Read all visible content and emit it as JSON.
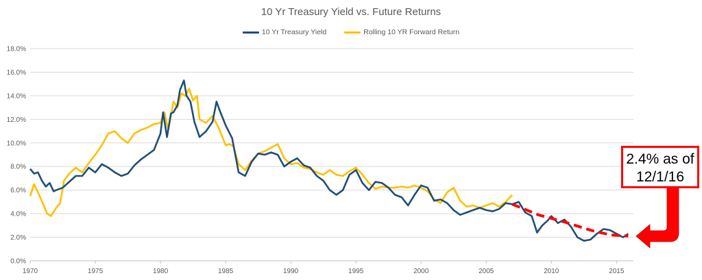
{
  "chart_data": {
    "type": "line",
    "title": "10 Yr Treasury Yield vs. Future Returns",
    "xlabel": "",
    "ylabel": "",
    "xlim": [
      1970,
      2016.3
    ],
    "ylim": [
      0,
      18
    ],
    "x_ticks": [
      1970,
      1975,
      1980,
      1985,
      1990,
      1995,
      2000,
      2005,
      2010,
      2015
    ],
    "y_ticks": [
      "0.0%",
      "2.0%",
      "4.0%",
      "6.0%",
      "8.0%",
      "10.0%",
      "12.0%",
      "14.0%",
      "16.0%",
      "18.0%"
    ],
    "grid": "horizontal",
    "legend_position": "top",
    "series": [
      {
        "name": "10 Yr Treasury Yield",
        "color": "#1f4e79",
        "x": [
          1970,
          1970.3,
          1970.6,
          1970.9,
          1971.2,
          1971.5,
          1971.8,
          1972,
          1972.5,
          1973,
          1973.5,
          1974,
          1974.5,
          1975,
          1975.5,
          1976,
          1976.5,
          1977,
          1977.5,
          1978,
          1978.5,
          1979,
          1979.5,
          1980,
          1980.2,
          1980.5,
          1980.8,
          1981,
          1981.3,
          1981.5,
          1981.8,
          1982,
          1982.3,
          1982.6,
          1983,
          1983.5,
          1984,
          1984.3,
          1984.6,
          1985,
          1985.5,
          1986,
          1986.5,
          1987,
          1987.5,
          1988,
          1988.5,
          1989,
          1989.5,
          1990,
          1990.5,
          1991,
          1991.5,
          1992,
          1992.5,
          1993,
          1993.5,
          1994,
          1994.5,
          1995,
          1995.5,
          1996,
          1996.5,
          1997,
          1997.5,
          1998,
          1998.5,
          1999,
          1999.5,
          2000,
          2000.5,
          2001,
          2001.5,
          2002,
          2002.5,
          2003,
          2003.5,
          2004,
          2004.5,
          2005,
          2005.5,
          2006,
          2006.5,
          2007,
          2007.5,
          2008,
          2008.5,
          2008.9,
          2009.3,
          2009.7,
          2010,
          2010.5,
          2011,
          2011.5,
          2012,
          2012.5,
          2013,
          2013.5,
          2014,
          2014.5,
          2015,
          2015.5,
          2015.9
        ],
        "values": [
          7.8,
          7.4,
          7.5,
          6.8,
          6.3,
          6.6,
          5.9,
          6.0,
          6.2,
          6.7,
          7.2,
          7.2,
          7.9,
          7.5,
          8.2,
          7.9,
          7.5,
          7.2,
          7.4,
          8.1,
          8.6,
          9.0,
          9.4,
          10.8,
          12.6,
          10.5,
          12.5,
          12.6,
          13.2,
          14.5,
          15.3,
          14.0,
          13.5,
          11.8,
          10.5,
          11.0,
          11.8,
          13.5,
          12.6,
          11.5,
          10.4,
          7.5,
          7.2,
          8.4,
          9.1,
          9.0,
          9.2,
          9.0,
          8.0,
          8.4,
          8.7,
          8.1,
          7.9,
          7.2,
          6.8,
          6.0,
          5.6,
          6.0,
          7.3,
          7.7,
          6.6,
          6.0,
          6.7,
          6.6,
          6.2,
          5.6,
          5.4,
          4.7,
          5.6,
          6.4,
          6.2,
          5.1,
          5.2,
          4.9,
          4.3,
          3.9,
          4.1,
          4.3,
          4.5,
          4.3,
          4.2,
          4.4,
          4.9,
          4.8,
          5.0,
          4.1,
          3.8,
          2.4,
          3.0,
          3.4,
          3.8,
          3.2,
          3.5,
          2.9,
          2.0,
          1.7,
          1.8,
          2.3,
          2.7,
          2.6,
          2.3,
          2.0,
          2.3
        ]
      },
      {
        "name": "Rolling 10 YR Forward Return",
        "color": "#ffc000",
        "x": [
          1970,
          1970.3,
          1970.6,
          1971,
          1971.3,
          1971.6,
          1972,
          1972.3,
          1972.6,
          1973,
          1973.5,
          1974,
          1974.5,
          1975,
          1975.5,
          1976,
          1976.5,
          1977,
          1977.5,
          1978,
          1978.5,
          1979,
          1979.5,
          1980,
          1980.3,
          1980.6,
          1981,
          1981.3,
          1981.6,
          1981.9,
          1982.2,
          1982.5,
          1982.8,
          1983,
          1983.5,
          1984,
          1984.5,
          1985,
          1985.3,
          1985.6,
          1986,
          1986.5,
          1987,
          1987.5,
          1988,
          1988.5,
          1989,
          1989.5,
          1990,
          1990.5,
          1991,
          1991.5,
          1992,
          1992.5,
          1993,
          1993.5,
          1994,
          1994.5,
          1995,
          1995.5,
          1996,
          1996.5,
          1997,
          1997.5,
          1998,
          1998.5,
          1999,
          1999.5,
          2000,
          2000.5,
          2001,
          2001.5,
          2002,
          2002.5,
          2003,
          2003.5,
          2004,
          2004.5,
          2005,
          2005.5,
          2006,
          2006.5,
          2007
        ],
        "values": [
          5.5,
          6.5,
          5.8,
          4.8,
          4.0,
          3.8,
          4.5,
          4.9,
          6.8,
          7.4,
          7.9,
          7.5,
          8.3,
          9.0,
          9.8,
          10.8,
          11.0,
          10.4,
          10.0,
          10.8,
          11.1,
          11.3,
          11.6,
          11.7,
          12.6,
          11.1,
          13.5,
          13.0,
          14.2,
          14.0,
          14.6,
          13.6,
          14.0,
          12.0,
          11.7,
          12.3,
          11.2,
          9.8,
          9.9,
          9.7,
          8.2,
          7.7,
          8.5,
          9.1,
          9.3,
          9.6,
          9.9,
          8.7,
          8.2,
          8.3,
          7.9,
          7.8,
          7.5,
          7.3,
          7.7,
          7.3,
          7.2,
          7.6,
          7.9,
          7.3,
          6.6,
          6.1,
          6.3,
          6.2,
          6.2,
          6.3,
          6.2,
          6.4,
          6.2,
          5.9,
          5.2,
          4.9,
          5.8,
          6.2,
          5.1,
          4.6,
          4.7,
          4.5,
          4.7,
          4.9,
          4.6,
          5.0,
          5.6
        ]
      }
    ],
    "projection": {
      "style": "dashed",
      "color": "#ff0000",
      "x": [
        2007,
        2009,
        2011,
        2013,
        2014.5,
        2015.9
      ],
      "values": [
        4.8,
        3.9,
        3.3,
        2.6,
        2.2,
        2.1
      ]
    },
    "annotation": {
      "line1": "2.4% as of",
      "line2": "12/1/16",
      "color": "#ff0000"
    }
  }
}
